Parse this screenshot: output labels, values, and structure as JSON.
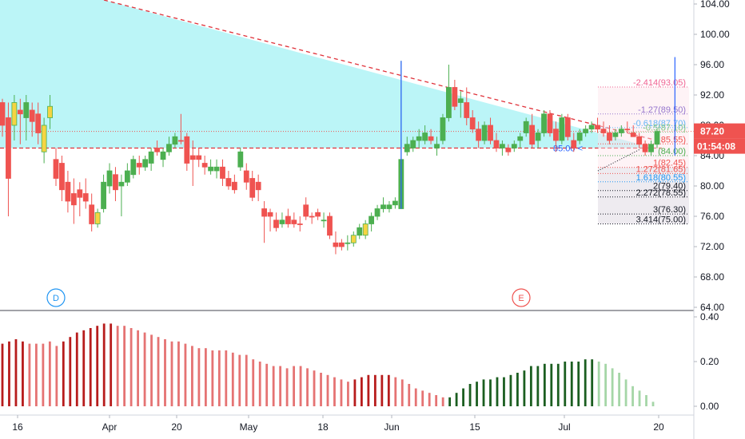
{
  "chart_data": [
    {
      "type": "candlestick",
      "title": "",
      "y_ticks": [
        "104.00",
        "100.00",
        "96.00",
        "92.00",
        "88.00",
        "84.00",
        "80.00",
        "76.00",
        "72.00",
        "68.00",
        "64.00"
      ],
      "ylim": [
        63.5,
        104.5
      ],
      "x_ticks": [
        "16",
        "Apr",
        "20",
        "May",
        "18",
        "Jun",
        "15",
        "Jul",
        "20"
      ],
      "last_price": {
        "value": "87.20",
        "color": "#ef5350"
      },
      "countdown": {
        "value": "01:54:08",
        "color": "#ef5350"
      },
      "markers": [
        {
          "label": "D",
          "color": "#2196f3"
        },
        {
          "label": "E",
          "color": "#ef5350"
        }
      ],
      "annotations": [
        {
          "text": "85.00 <",
          "price": 85.0
        }
      ],
      "fib_levels": [
        {
          "label": "-2.414(93.05)",
          "price": 93.05,
          "color": "#f06292"
        },
        {
          "label": "-1.27(89.50)",
          "price": 89.5,
          "color": "#9575cd"
        },
        {
          "label": "-0.618(87.70)",
          "price": 87.7,
          "color": "#64b5f6"
        },
        {
          "label": "-0.5(87.10)",
          "price": 87.1,
          "color": "#81c784"
        },
        {
          "label": "85.55)",
          "price": 85.55,
          "color": "#ef5350"
        },
        {
          "label": "(84.00)",
          "price": 84.0,
          "color": "#4caf50"
        },
        {
          "label": "1(82.45)",
          "price": 82.45,
          "color": "#ef5350"
        },
        {
          "label": "1.272(81.65)",
          "price": 81.65,
          "color": "#ef5350"
        },
        {
          "label": "1.618(80.55)",
          "price": 80.55,
          "color": "#2196f3"
        },
        {
          "label": "2(79.40)",
          "price": 79.4,
          "color": "#131722"
        },
        {
          "label": "2.272(78.55)",
          "price": 78.55,
          "color": "#131722"
        },
        {
          "label": "3(76.30)",
          "price": 76.3,
          "color": "#131722"
        },
        {
          "label": "3.414(75.00)",
          "price": 75.0,
          "color": "#131722"
        }
      ],
      "colors": {
        "up": "#4caf50",
        "down": "#ef5350",
        "up_yellow": "#f5d442",
        "triangle_fill": "#b7f4f7",
        "trendline": "#e0323a",
        "support": "#e0323a"
      },
      "candles": [
        [
          91,
          91.5,
          86.5,
          88,
          "d"
        ],
        [
          89,
          91,
          76,
          81,
          "d"
        ],
        [
          88,
          92,
          86,
          91,
          "y"
        ],
        [
          90,
          91.5,
          85.5,
          89.5,
          "d"
        ],
        [
          89,
          92,
          86,
          91,
          "u"
        ],
        [
          88.5,
          91,
          86.5,
          90,
          "d"
        ],
        [
          89.5,
          91,
          85.5,
          87,
          "d"
        ],
        [
          88,
          89,
          83,
          84.5,
          "y"
        ],
        [
          89,
          92,
          87.5,
          90.5,
          "y"
        ],
        [
          83.5,
          85,
          80,
          81,
          "d"
        ],
        [
          83,
          84,
          78,
          79.5,
          "d"
        ],
        [
          80.5,
          82,
          76.5,
          78,
          "d"
        ],
        [
          79,
          81,
          75,
          77.5,
          "d"
        ],
        [
          78.5,
          80.5,
          76,
          79.5,
          "d"
        ],
        [
          79,
          81,
          77,
          78,
          "d"
        ],
        [
          77.5,
          79,
          74,
          75,
          "d"
        ],
        [
          75,
          77,
          74.5,
          76.5,
          "y"
        ],
        [
          77,
          81.5,
          76.5,
          80.5,
          "u"
        ],
        [
          80,
          83,
          79,
          82,
          "u"
        ],
        [
          81.5,
          82.5,
          78,
          79.5,
          "d"
        ],
        [
          80,
          81.5,
          76,
          80.5,
          "u"
        ],
        [
          80.5,
          83,
          80,
          82,
          "u"
        ],
        [
          81.5,
          84,
          81,
          83.5,
          "u"
        ],
        [
          82.5,
          84,
          81.5,
          83,
          "d"
        ],
        [
          82.5,
          84,
          82,
          83.5,
          "u"
        ],
        [
          83,
          85,
          82,
          84.5,
          "u"
        ],
        [
          84.5,
          86,
          84,
          85,
          "d"
        ],
        [
          83.5,
          85,
          82.5,
          84.5,
          "u"
        ],
        [
          84.5,
          86.5,
          84,
          85.5,
          "u"
        ],
        [
          85.5,
          87,
          85,
          86.5,
          "u"
        ],
        [
          86,
          89.5,
          85.5,
          86,
          "d"
        ],
        [
          86.5,
          87,
          82,
          83,
          "d"
        ],
        [
          84,
          86,
          80,
          83.5,
          "d"
        ],
        [
          84,
          85,
          82.5,
          83.5,
          "d"
        ],
        [
          83,
          84,
          81.5,
          82.5,
          "d"
        ],
        [
          82.5,
          83.5,
          81.5,
          82,
          "u"
        ],
        [
          82,
          83.5,
          81,
          82.5,
          "u"
        ],
        [
          82.5,
          83.5,
          80,
          81,
          "d"
        ],
        [
          81,
          82,
          79.5,
          80,
          "d"
        ],
        [
          80.5,
          81.5,
          79,
          79.5,
          "d"
        ],
        [
          82.5,
          85,
          82,
          84.5,
          "u"
        ],
        [
          82,
          83,
          79.5,
          80.5,
          "d"
        ],
        [
          81,
          82,
          78,
          78.5,
          "d"
        ],
        [
          80.5,
          81.5,
          78,
          79.5,
          "d"
        ],
        [
          77,
          78,
          72.5,
          76,
          "d"
        ],
        [
          76.5,
          77,
          74,
          76,
          "d"
        ],
        [
          75.5,
          76.5,
          74,
          74.5,
          "d"
        ],
        [
          75,
          76.5,
          74.5,
          75.5,
          "u"
        ],
        [
          76,
          77,
          74.5,
          75,
          "d"
        ],
        [
          75.5,
          76.5,
          74.5,
          75,
          "d"
        ],
        [
          75,
          76,
          74,
          75,
          "d"
        ],
        [
          77.5,
          78.5,
          75.5,
          76,
          "d"
        ],
        [
          76,
          76.5,
          75,
          76,
          "d"
        ],
        [
          76.5,
          77,
          75.5,
          76,
          "d"
        ],
        [
          75.5,
          76.5,
          74.5,
          75.5,
          "u"
        ],
        [
          76,
          76.5,
          73,
          73.5,
          "d"
        ],
        [
          72.5,
          74,
          71,
          72,
          "d"
        ],
        [
          72,
          73,
          71.5,
          72.5,
          "d"
        ],
        [
          72.5,
          73.5,
          71.5,
          72.5,
          "u"
        ],
        [
          72.5,
          74,
          72,
          73.5,
          "y"
        ],
        [
          73.5,
          75,
          73,
          74.5,
          "u"
        ],
        [
          73.5,
          75.5,
          73,
          75,
          "y"
        ],
        [
          75,
          76.5,
          74,
          76,
          "u"
        ],
        [
          76,
          77.5,
          75.5,
          77,
          "u"
        ],
        [
          77,
          78.5,
          76.5,
          77.5,
          "u"
        ],
        [
          77,
          78,
          76.5,
          77.5,
          "u"
        ],
        [
          77.5,
          78.5,
          77,
          78,
          "u"
        ],
        [
          77,
          96.5,
          77,
          83.5,
          "u"
        ],
        [
          84.5,
          86.5,
          84,
          85.5,
          "u"
        ],
        [
          85,
          86.5,
          84.5,
          86,
          "u"
        ],
        [
          86,
          87.5,
          85,
          86.5,
          "u"
        ],
        [
          86,
          88,
          85.5,
          87,
          "u"
        ],
        [
          86.5,
          87.5,
          85.5,
          86,
          "d"
        ],
        [
          85,
          86.5,
          84,
          85.5,
          "u"
        ],
        [
          86,
          89.5,
          85.5,
          89,
          "u"
        ],
        [
          89,
          96,
          88.5,
          93,
          "u"
        ],
        [
          93,
          94,
          90,
          90.5,
          "d"
        ],
        [
          91,
          92.5,
          89,
          91.5,
          "u"
        ],
        [
          91,
          93,
          88,
          89,
          "d"
        ],
        [
          89,
          90,
          87,
          87.5,
          "d"
        ],
        [
          87.5,
          88.5,
          85,
          86,
          "d"
        ],
        [
          86,
          88.5,
          85.5,
          88,
          "u"
        ],
        [
          88,
          89,
          85.5,
          86,
          "d"
        ],
        [
          86,
          87,
          84.5,
          85,
          "d"
        ],
        [
          85,
          86,
          84,
          85.5,
          "u"
        ],
        [
          84.5,
          85.5,
          84,
          85,
          "d"
        ],
        [
          85,
          86,
          84.5,
          85.5,
          "u"
        ],
        [
          86,
          87,
          85,
          86.5,
          "u"
        ],
        [
          87,
          89,
          86.5,
          88.5,
          "u"
        ],
        [
          88,
          89.5,
          85,
          85.5,
          "d"
        ],
        [
          86,
          87.5,
          85,
          87,
          "u"
        ],
        [
          87,
          90,
          86.5,
          89.5,
          "u"
        ],
        [
          89.5,
          90,
          86.5,
          87,
          "d"
        ],
        [
          87.5,
          88.5,
          84.5,
          86,
          "d"
        ],
        [
          86,
          89.5,
          85.5,
          89,
          "u"
        ],
        [
          89,
          89.5,
          86,
          86.5,
          "d"
        ],
        [
          86,
          87,
          84.5,
          85,
          "d"
        ],
        [
          86,
          87.5,
          85.5,
          87,
          "u"
        ],
        [
          87,
          88,
          86.5,
          87.5,
          "u"
        ],
        [
          87.5,
          88.5,
          87,
          88,
          "u"
        ],
        [
          88,
          89,
          87,
          87.5,
          "d"
        ],
        [
          87.5,
          88.5,
          86.5,
          87,
          "d"
        ],
        [
          87,
          88,
          85.5,
          86,
          "d"
        ],
        [
          86.5,
          87.5,
          86,
          87,
          "u"
        ],
        [
          87,
          88,
          86.5,
          87.5,
          "u"
        ],
        [
          87.5,
          88.5,
          87,
          87.5,
          "d"
        ],
        [
          87,
          88,
          86.5,
          86.5,
          "d"
        ],
        [
          86.5,
          87,
          85,
          85.5,
          "d"
        ],
        [
          85.5,
          86,
          84,
          84.5,
          "d"
        ],
        [
          84.5,
          86,
          84,
          85.5,
          "u"
        ],
        [
          85.5,
          87.5,
          85,
          87.2,
          "u"
        ]
      ],
      "candle_width": 6
    },
    {
      "type": "bar",
      "title": "",
      "y_ticks": [
        "0.40",
        "0.20",
        "0.00"
      ],
      "ylim": [
        -0.025,
        0.43
      ],
      "bar_colors": {
        "dark_red": "#b71c1c",
        "light_red": "#e57373",
        "dark_green": "#1b5e20",
        "light_green": "#a5d6a7"
      },
      "bars": [
        [
          0.28,
          "dr"
        ],
        [
          0.29,
          "dr"
        ],
        [
          0.3,
          "dr"
        ],
        [
          0.29,
          "dr"
        ],
        [
          0.28,
          "lr"
        ],
        [
          0.28,
          "lr"
        ],
        [
          0.28,
          "lr"
        ],
        [
          0.29,
          "lr"
        ],
        [
          0.27,
          "lr"
        ],
        [
          0.29,
          "dr"
        ],
        [
          0.31,
          "dr"
        ],
        [
          0.33,
          "dr"
        ],
        [
          0.34,
          "dr"
        ],
        [
          0.35,
          "dr"
        ],
        [
          0.36,
          "dr"
        ],
        [
          0.37,
          "dr"
        ],
        [
          0.37,
          "dr"
        ],
        [
          0.36,
          "lr"
        ],
        [
          0.36,
          "lr"
        ],
        [
          0.35,
          "lr"
        ],
        [
          0.34,
          "lr"
        ],
        [
          0.33,
          "lr"
        ],
        [
          0.32,
          "lr"
        ],
        [
          0.31,
          "lr"
        ],
        [
          0.3,
          "lr"
        ],
        [
          0.29,
          "lr"
        ],
        [
          0.29,
          "lr"
        ],
        [
          0.28,
          "lr"
        ],
        [
          0.27,
          "lr"
        ],
        [
          0.26,
          "lr"
        ],
        [
          0.26,
          "lr"
        ],
        [
          0.25,
          "lr"
        ],
        [
          0.25,
          "lr"
        ],
        [
          0.25,
          "lr"
        ],
        [
          0.24,
          "lr"
        ],
        [
          0.23,
          "lr"
        ],
        [
          0.23,
          "lr"
        ],
        [
          0.21,
          "lr"
        ],
        [
          0.2,
          "lr"
        ],
        [
          0.19,
          "lr"
        ],
        [
          0.18,
          "lr"
        ],
        [
          0.18,
          "lr"
        ],
        [
          0.17,
          "lr"
        ],
        [
          0.18,
          "lr"
        ],
        [
          0.18,
          "lr"
        ],
        [
          0.17,
          "lr"
        ],
        [
          0.16,
          "lr"
        ],
        [
          0.15,
          "lr"
        ],
        [
          0.14,
          "lr"
        ],
        [
          0.13,
          "lr"
        ],
        [
          0.12,
          "lr"
        ],
        [
          0.11,
          "lr"
        ],
        [
          0.12,
          "dr"
        ],
        [
          0.13,
          "dr"
        ],
        [
          0.14,
          "dr"
        ],
        [
          0.14,
          "dr"
        ],
        [
          0.14,
          "dr"
        ],
        [
          0.14,
          "dr"
        ],
        [
          0.13,
          "lr"
        ],
        [
          0.12,
          "lr"
        ],
        [
          0.1,
          "lr"
        ],
        [
          0.08,
          "lr"
        ],
        [
          0.07,
          "lr"
        ],
        [
          0.06,
          "lr"
        ],
        [
          0.05,
          "lr"
        ],
        [
          0.04,
          "lr"
        ],
        [
          0.04,
          "dg"
        ],
        [
          0.06,
          "dg"
        ],
        [
          0.08,
          "dg"
        ],
        [
          0.1,
          "dg"
        ],
        [
          0.11,
          "dg"
        ],
        [
          0.12,
          "dg"
        ],
        [
          0.12,
          "dg"
        ],
        [
          0.13,
          "dg"
        ],
        [
          0.13,
          "dg"
        ],
        [
          0.14,
          "dg"
        ],
        [
          0.15,
          "dg"
        ],
        [
          0.16,
          "dg"
        ],
        [
          0.18,
          "dg"
        ],
        [
          0.18,
          "dg"
        ],
        [
          0.19,
          "dg"
        ],
        [
          0.19,
          "dg"
        ],
        [
          0.19,
          "dg"
        ],
        [
          0.2,
          "dg"
        ],
        [
          0.2,
          "dg"
        ],
        [
          0.2,
          "dg"
        ],
        [
          0.21,
          "dg"
        ],
        [
          0.21,
          "dg"
        ],
        [
          0.2,
          "lg"
        ],
        [
          0.19,
          "lg"
        ],
        [
          0.17,
          "lg"
        ],
        [
          0.15,
          "lg"
        ],
        [
          0.12,
          "lg"
        ],
        [
          0.09,
          "lg"
        ],
        [
          0.07,
          "lg"
        ],
        [
          0.05,
          "lg"
        ],
        [
          0.02,
          "lg"
        ]
      ]
    }
  ]
}
